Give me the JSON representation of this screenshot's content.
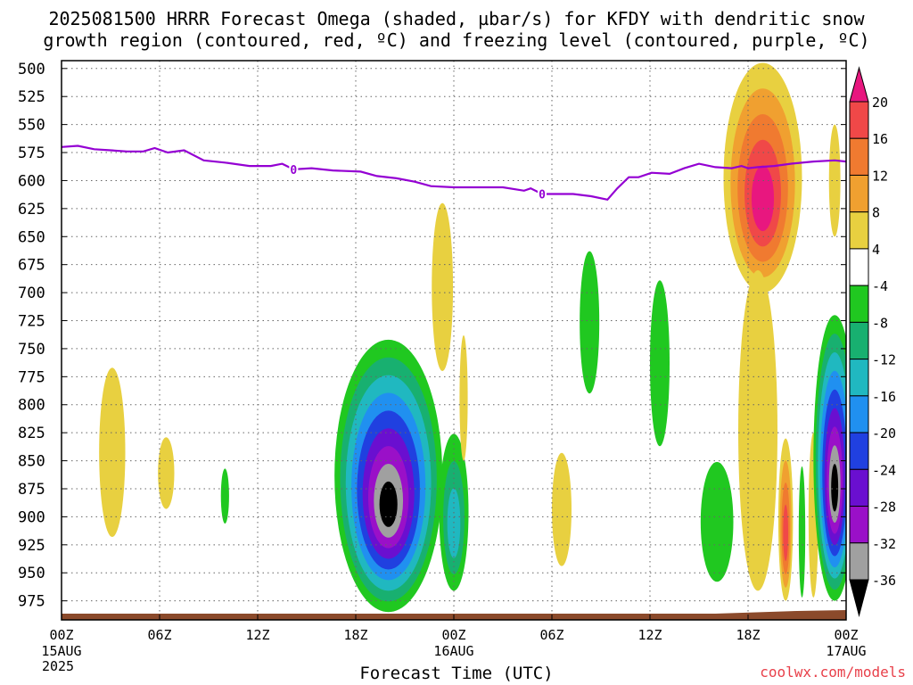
{
  "title_line1": "2025081500 HRRR Forecast Omega (shaded, µbar/s) for KFDY with dendritic snow",
  "title_line2": "growth region (contoured, red, ºC) and freezing level (contoured, purple, ºC)",
  "credit": "coolwx.com/models",
  "chart_data": {
    "type": "time-height contour",
    "xlabel": "Forecast Time (UTC)",
    "ylabel": "",
    "x_range_hours": [
      0,
      48
    ],
    "x_ticks": [
      {
        "hour": 0,
        "label": "00Z",
        "sub1": "15AUG",
        "sub2": "2025"
      },
      {
        "hour": 6,
        "label": "06Z"
      },
      {
        "hour": 12,
        "label": "12Z"
      },
      {
        "hour": 18,
        "label": "18Z"
      },
      {
        "hour": 24,
        "label": "00Z",
        "sub1": "16AUG"
      },
      {
        "hour": 30,
        "label": "06Z"
      },
      {
        "hour": 36,
        "label": "12Z"
      },
      {
        "hour": 42,
        "label": "18Z"
      },
      {
        "hour": 48,
        "label": "00Z",
        "sub1": "17AUG"
      }
    ],
    "y_range_hPa": [
      992,
      493
    ],
    "y_ticks": [
      500,
      525,
      550,
      575,
      600,
      625,
      650,
      675,
      700,
      725,
      750,
      775,
      800,
      825,
      850,
      875,
      900,
      925,
      950,
      975
    ],
    "grid": true,
    "colorbar": {
      "levels": [
        "20",
        "16",
        "12",
        "8",
        "4",
        "-4",
        "-8",
        "-12",
        "-16",
        "-20",
        "-24",
        "-28",
        "-32",
        "-36"
      ],
      "colors": [
        "#e8177f",
        "#f04848",
        "#f07a30",
        "#f0a030",
        "#e8d040",
        "#ffffff",
        "#20c820",
        "#18b070",
        "#20b8c0",
        "#2090f0",
        "#2040e0",
        "#6a0fd0",
        "#9a10c8",
        "#a0a0a0",
        "#000000"
      ]
    },
    "freezing_level": {
      "color": "#9400d3",
      "label": "0",
      "points": [
        [
          0,
          570
        ],
        [
          1,
          569
        ],
        [
          2,
          572
        ],
        [
          3,
          573
        ],
        [
          4,
          574
        ],
        [
          5,
          574
        ],
        [
          5.7,
          571
        ],
        [
          6.5,
          575
        ],
        [
          7.5,
          573
        ],
        [
          8.7,
          582
        ],
        [
          10,
          584
        ],
        [
          11.5,
          587
        ],
        [
          12.8,
          587
        ],
        [
          13.5,
          585
        ],
        [
          14.2,
          590
        ],
        [
          15.3,
          589
        ],
        [
          16.6,
          591
        ],
        [
          18.3,
          592
        ],
        [
          19.3,
          596
        ],
        [
          20.5,
          598
        ],
        [
          21.6,
          601
        ],
        [
          22.6,
          605
        ],
        [
          24,
          606
        ],
        [
          25,
          606
        ],
        [
          26,
          606
        ],
        [
          27,
          606
        ],
        [
          28.3,
          609
        ],
        [
          28.7,
          607
        ],
        [
          29.4,
          612
        ],
        [
          30.3,
          612
        ],
        [
          31.3,
          612
        ],
        [
          32.4,
          614
        ],
        [
          33.4,
          617
        ],
        [
          34,
          607
        ],
        [
          34.7,
          597
        ],
        [
          35.3,
          597
        ],
        [
          36.1,
          593
        ],
        [
          37.2,
          594
        ],
        [
          38.1,
          589
        ],
        [
          39,
          585
        ],
        [
          40,
          588
        ],
        [
          41,
          589
        ],
        [
          41.6,
          587
        ],
        [
          42,
          589
        ],
        [
          42.6,
          588
        ],
        [
          43.6,
          587
        ],
        [
          44.6,
          585
        ],
        [
          46,
          583
        ],
        [
          47.3,
          582
        ],
        [
          48,
          583
        ]
      ]
    },
    "features": [
      {
        "hour": 3.1,
        "p_top": 767,
        "p_bot": 918,
        "half_width_h": 0.8,
        "bands": [
          "#e8d040"
        ]
      },
      {
        "hour": 6.4,
        "p_top": 829,
        "p_bot": 893,
        "half_width_h": 0.5,
        "bands": [
          "#e8d040"
        ]
      },
      {
        "hour": 10.0,
        "p_top": 857,
        "p_bot": 906,
        "half_width_h": 0.25,
        "bands": [
          "#20c820"
        ]
      },
      {
        "hour": 20.0,
        "p_top": 742,
        "p_bot": 985,
        "half_width_h": 3.3,
        "bands": [
          "#20c820",
          "#18b070",
          "#20b8c0",
          "#2090f0",
          "#2040e0",
          "#6a0fd0",
          "#9a10c8",
          "#a0a0a0",
          "#000000"
        ]
      },
      {
        "hour": 23.3,
        "p_top": 620,
        "p_bot": 770,
        "half_width_h": 0.65,
        "bands": [
          "#e8d040"
        ]
      },
      {
        "hour": 24.0,
        "p_top": 826,
        "p_bot": 966,
        "half_width_h": 0.9,
        "bands": [
          "#20c820",
          "#18b070",
          "#20b8c0"
        ]
      },
      {
        "hour": 24.6,
        "p_top": 738,
        "p_bot": 850,
        "half_width_h": 0.25,
        "bands": [
          "#e8d040"
        ]
      },
      {
        "hour": 30.6,
        "p_top": 843,
        "p_bot": 944,
        "half_width_h": 0.6,
        "bands": [
          "#e8d040"
        ]
      },
      {
        "hour": 32.3,
        "p_top": 663,
        "p_bot": 790,
        "half_width_h": 0.6,
        "bands": [
          "#20c820"
        ]
      },
      {
        "hour": 36.6,
        "p_top": 689,
        "p_bot": 837,
        "half_width_h": 0.6,
        "bands": [
          "#20c820"
        ]
      },
      {
        "hour": 40.1,
        "p_top": 851,
        "p_bot": 958,
        "half_width_h": 1.0,
        "bands": [
          "#20c820"
        ]
      },
      {
        "hour": 42.9,
        "p_top": 495,
        "p_bot": 700,
        "half_width_h": 2.4,
        "bands": [
          "#e8d040",
          "#f0a030",
          "#f07a30",
          "#f04848",
          "#e8177f"
        ]
      },
      {
        "hour": 42.6,
        "p_top": 680,
        "p_bot": 966,
        "half_width_h": 1.2,
        "bands": [
          "#e8d040"
        ]
      },
      {
        "hour": 44.3,
        "p_top": 830,
        "p_bot": 975,
        "half_width_h": 0.45,
        "bands": [
          "#e8d040",
          "#f0a030",
          "#f07a30",
          "#f04848"
        ]
      },
      {
        "hour": 45.3,
        "p_top": 855,
        "p_bot": 972,
        "half_width_h": 0.2,
        "bands": [
          "#20c820"
        ]
      },
      {
        "hour": 46.0,
        "p_top": 825,
        "p_bot": 972,
        "half_width_h": 0.3,
        "bands": [
          "#e8d040"
        ]
      },
      {
        "hour": 47.3,
        "p_top": 550,
        "p_bot": 650,
        "half_width_h": 0.35,
        "bands": [
          "#e8d040"
        ]
      },
      {
        "hour": 47.3,
        "p_top": 720,
        "p_bot": 975,
        "half_width_h": 1.3,
        "bands": [
          "#20c820",
          "#18b070",
          "#20b8c0",
          "#2090f0",
          "#2040e0",
          "#6a0fd0",
          "#9a10c8",
          "#a0a0a0",
          "#000000"
        ]
      }
    ],
    "terrain_color": "#8b4a2b"
  }
}
